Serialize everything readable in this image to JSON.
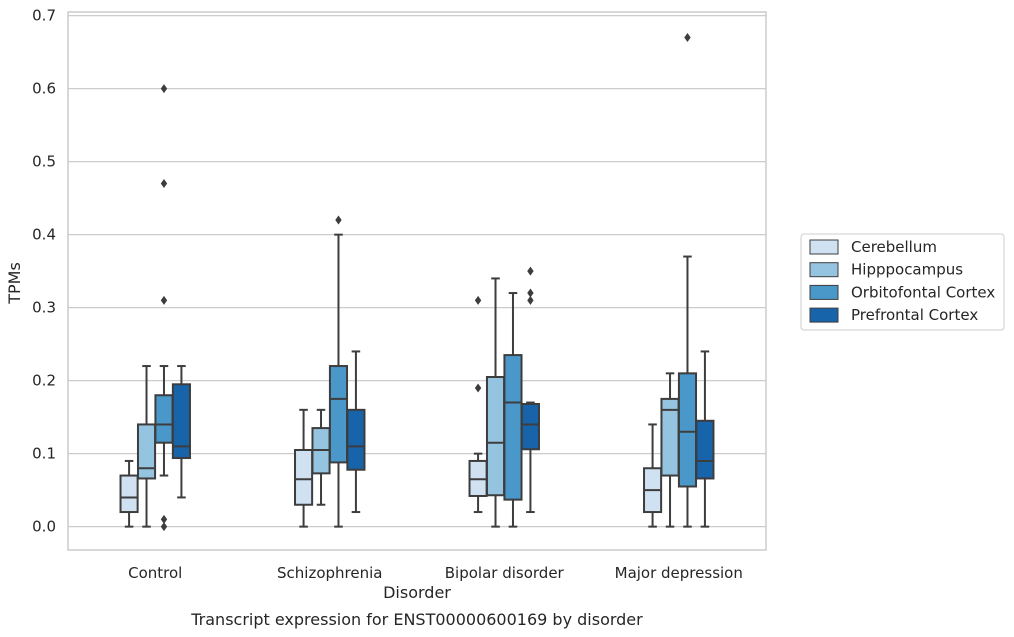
{
  "chart_data": {
    "type": "box",
    "xlabel": "Disorder",
    "ylabel": "TPMs",
    "caption": "Transcript expression for ENST00000600169 by disorder",
    "ylim": [
      -0.032,
      0.705
    ],
    "yticks": [
      0.0,
      0.1,
      0.2,
      0.3,
      0.4,
      0.5,
      0.6,
      0.7
    ],
    "ytick_labels": [
      "0.0",
      "0.1",
      "0.2",
      "0.3",
      "0.4",
      "0.5",
      "0.6",
      "0.7"
    ],
    "grid": "horizontal",
    "legend_position": "right",
    "categories": [
      "Control",
      "Schizophrenia",
      "Bipolar disorder",
      "Major depression"
    ],
    "series": [
      {
        "name": "Cerebellum",
        "color": "#d0e1f2",
        "boxes": [
          {
            "whislo": 0.0,
            "q1": 0.02,
            "med": 0.04,
            "q3": 0.07,
            "whishi": 0.09,
            "fliers": []
          },
          {
            "whislo": 0.0,
            "q1": 0.03,
            "med": 0.065,
            "q3": 0.105,
            "whishi": 0.16,
            "fliers": []
          },
          {
            "whislo": 0.02,
            "q1": 0.042,
            "med": 0.065,
            "q3": 0.09,
            "whishi": 0.1,
            "fliers": [
              0.19,
              0.31
            ]
          },
          {
            "whislo": 0.0,
            "q1": 0.02,
            "med": 0.05,
            "q3": 0.08,
            "whishi": 0.14,
            "fliers": []
          }
        ]
      },
      {
        "name": "Hipppocampus",
        "color": "#94c4df",
        "boxes": [
          {
            "whislo": 0.0,
            "q1": 0.066,
            "med": 0.08,
            "q3": 0.14,
            "whishi": 0.22,
            "fliers": []
          },
          {
            "whislo": 0.03,
            "q1": 0.073,
            "med": 0.105,
            "q3": 0.135,
            "whishi": 0.16,
            "fliers": []
          },
          {
            "whislo": 0.0,
            "q1": 0.043,
            "med": 0.115,
            "q3": 0.205,
            "whishi": 0.34,
            "fliers": []
          },
          {
            "whislo": 0.0,
            "q1": 0.07,
            "med": 0.16,
            "q3": 0.175,
            "whishi": 0.21,
            "fliers": []
          }
        ]
      },
      {
        "name": "Orbitofontal Cortex",
        "color": "#4a98c9",
        "boxes": [
          {
            "whislo": 0.07,
            "q1": 0.115,
            "med": 0.14,
            "q3": 0.18,
            "whishi": 0.22,
            "fliers": [
              0.0,
              0.01,
              0.31,
              0.47,
              0.6
            ]
          },
          {
            "whislo": 0.0,
            "q1": 0.088,
            "med": 0.175,
            "q3": 0.22,
            "whishi": 0.4,
            "fliers": [
              0.42
            ]
          },
          {
            "whislo": 0.0,
            "q1": 0.037,
            "med": 0.17,
            "q3": 0.235,
            "whishi": 0.32,
            "fliers": []
          },
          {
            "whislo": 0.0,
            "q1": 0.055,
            "med": 0.13,
            "q3": 0.21,
            "whishi": 0.37,
            "fliers": [
              0.67
            ]
          }
        ]
      },
      {
        "name": "Prefrontal Cortex",
        "color": "#1764ab",
        "boxes": [
          {
            "whislo": 0.04,
            "q1": 0.094,
            "med": 0.11,
            "q3": 0.195,
            "whishi": 0.22,
            "fliers": []
          },
          {
            "whislo": 0.02,
            "q1": 0.078,
            "med": 0.11,
            "q3": 0.16,
            "whishi": 0.24,
            "fliers": []
          },
          {
            "whislo": 0.02,
            "q1": 0.106,
            "med": 0.14,
            "q3": 0.168,
            "whishi": 0.17,
            "fliers": [
              0.31,
              0.32,
              0.35
            ]
          },
          {
            "whislo": 0.0,
            "q1": 0.066,
            "med": 0.09,
            "q3": 0.145,
            "whishi": 0.24,
            "fliers": []
          }
        ]
      }
    ]
  }
}
